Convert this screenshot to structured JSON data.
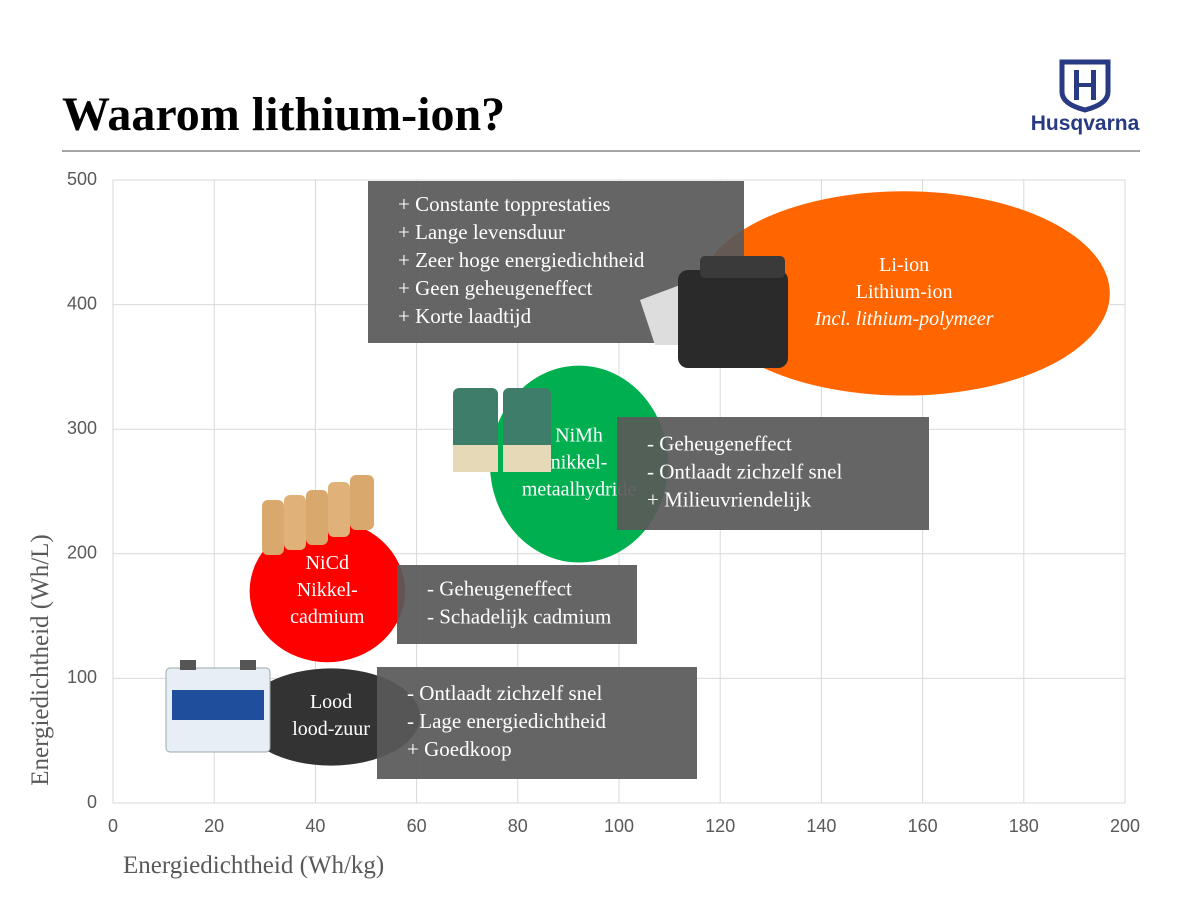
{
  "header": {
    "title": "Waarom lithium-ion?",
    "logo": "Husqvarna"
  },
  "chart_data": {
    "type": "ellipse",
    "xlabel": "Energiedichtheid (Wh/kg)",
    "ylabel": "Energiedichtheid (Wh/L)",
    "xlim": [
      0,
      200
    ],
    "ylim": [
      0,
      500
    ],
    "xticks": [
      0,
      20,
      40,
      60,
      80,
      100,
      120,
      140,
      160,
      180,
      200
    ],
    "yticks": [
      0,
      100,
      200,
      300,
      400,
      500
    ],
    "grid": true,
    "series": [
      {
        "labels": [
          "Lood",
          "lood-zuur"
        ],
        "color": "#333333",
        "x": [
          25.5,
          60.7
        ],
        "y": [
          30,
          108
        ],
        "notes": [
          "- Ontlaadt zichzelf snel",
          "- Lage energiedichtheid",
          "+ Goedkoop"
        ]
      },
      {
        "labels": [
          "NiCd",
          "Nikkel-",
          "cadmium"
        ],
        "color": "#ff0000",
        "x": [
          27,
          57.7
        ],
        "y": [
          113,
          227
        ],
        "notes": [
          "- Geheugeneffect",
          "- Schadelijk cadmium"
        ]
      },
      {
        "labels": [
          "NiMh",
          "nikkel-",
          "metaalhydride"
        ],
        "color": "#00b050",
        "x": [
          74.5,
          109.7
        ],
        "y": [
          193,
          351
        ],
        "notes": [
          "- Geheugeneffect",
          "- Ontlaadt zichzelf snel",
          "+ Milieuvriendelijk"
        ]
      },
      {
        "labels": [
          "Li-ion",
          "Lithium-ion"
        ],
        "sublabel": "Incl. lithium-polymeer",
        "color": "#ff6600",
        "x": [
          115.7,
          197
        ],
        "y": [
          327,
          491
        ],
        "notes": [
          "+ Constante topprestaties",
          "+ Lange levensduur",
          "+ Zeer hoge energiedichtheid",
          "+ Geen geheugeneffect",
          "+ Korte laadtijd"
        ]
      }
    ]
  }
}
